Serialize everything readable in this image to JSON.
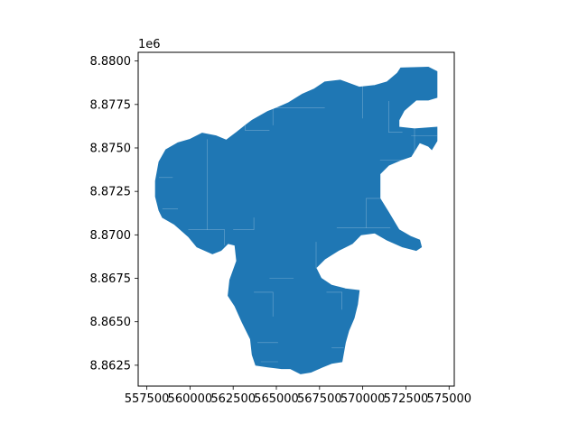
{
  "chart_data": {
    "type": "map",
    "title": "",
    "xlabel": "",
    "ylabel": "",
    "y_offset_label": "1e6",
    "xlim": [
      557000,
      575300
    ],
    "ylim": [
      8861300,
      8880500
    ],
    "x_ticks": [
      {
        "value": 557500,
        "label": "557500"
      },
      {
        "value": 560000,
        "label": "560000"
      },
      {
        "value": 562500,
        "label": "562500"
      },
      {
        "value": 565000,
        "label": "565000"
      },
      {
        "value": 567500,
        "label": "567500"
      },
      {
        "value": 570000,
        "label": "570000"
      },
      {
        "value": 572500,
        "label": "572500"
      },
      {
        "value": 575000,
        "label": "575000"
      }
    ],
    "y_ticks": [
      {
        "value": 8862500,
        "label": "8.8625"
      },
      {
        "value": 8865000,
        "label": "8.8650"
      },
      {
        "value": 8867500,
        "label": "8.8675"
      },
      {
        "value": 8870000,
        "label": "8.8700"
      },
      {
        "value": 8872500,
        "label": "8.8725"
      },
      {
        "value": 8875000,
        "label": "8.8750"
      },
      {
        "value": 8877500,
        "label": "8.8775"
      },
      {
        "value": 8880000,
        "label": "8.8800"
      }
    ],
    "fill_color": "#1f77b4",
    "edge_color": "#ffffff",
    "outline": [
      [
        558000,
        8873100
      ],
      [
        558200,
        8874200
      ],
      [
        558600,
        8874900
      ],
      [
        559300,
        8875300
      ],
      [
        560000,
        8875500
      ],
      [
        560700,
        8875850
      ],
      [
        561500,
        8875700
      ],
      [
        562100,
        8875450
      ],
      [
        562700,
        8875900
      ],
      [
        563200,
        8876300
      ],
      [
        563600,
        8876600
      ],
      [
        564500,
        8877100
      ],
      [
        565000,
        8877300
      ],
      [
        565700,
        8877600
      ],
      [
        566500,
        8878100
      ],
      [
        567200,
        8878400
      ],
      [
        567800,
        8878800
      ],
      [
        568700,
        8878900
      ],
      [
        569800,
        8878500
      ],
      [
        570700,
        8878600
      ],
      [
        571400,
        8878800
      ],
      [
        572000,
        8879300
      ],
      [
        572200,
        8879600
      ],
      [
        573800,
        8879650
      ],
      [
        574300,
        8879400
      ],
      [
        574300,
        8877900
      ],
      [
        573800,
        8877750
      ],
      [
        573100,
        8877750
      ],
      [
        572400,
        8877150
      ],
      [
        572100,
        8876600
      ],
      [
        572100,
        8876200
      ],
      [
        573000,
        8876100
      ],
      [
        574300,
        8876200
      ],
      [
        574300,
        8875400
      ],
      [
        574000,
        8874900
      ],
      [
        573800,
        8875100
      ],
      [
        573300,
        8875300
      ],
      [
        572800,
        8874500
      ],
      [
        572200,
        8874300
      ],
      [
        571500,
        8874000
      ],
      [
        571000,
        8873500
      ],
      [
        571000,
        8872100
      ],
      [
        571500,
        8871300
      ],
      [
        572100,
        8870300
      ],
      [
        572800,
        8869900
      ],
      [
        573300,
        8869700
      ],
      [
        573400,
        8869300
      ],
      [
        573100,
        8869100
      ],
      [
        572300,
        8869300
      ],
      [
        571400,
        8869700
      ],
      [
        570700,
        8870100
      ],
      [
        569900,
        8870000
      ],
      [
        569400,
        8869500
      ],
      [
        568600,
        8869100
      ],
      [
        567800,
        8868600
      ],
      [
        567300,
        8868100
      ],
      [
        567600,
        8867500
      ],
      [
        568200,
        8867100
      ],
      [
        569000,
        8866900
      ],
      [
        569800,
        8866800
      ],
      [
        569700,
        8866000
      ],
      [
        569500,
        8865200
      ],
      [
        569200,
        8864500
      ],
      [
        569000,
        8863800
      ],
      [
        568800,
        8862700
      ],
      [
        568200,
        8862600
      ],
      [
        567700,
        8862400
      ],
      [
        567000,
        8862100
      ],
      [
        566400,
        8862000
      ],
      [
        565800,
        8862300
      ],
      [
        565300,
        8862300
      ],
      [
        564500,
        8862400
      ],
      [
        563800,
        8862500
      ],
      [
        563600,
        8863100
      ],
      [
        563500,
        8864000
      ],
      [
        563000,
        8865000
      ],
      [
        562600,
        8865900
      ],
      [
        562200,
        8866500
      ],
      [
        562300,
        8867400
      ],
      [
        562700,
        8868500
      ],
      [
        562600,
        8869400
      ],
      [
        562200,
        8869500
      ],
      [
        561800,
        8869100
      ],
      [
        561300,
        8868900
      ],
      [
        560400,
        8869300
      ],
      [
        559900,
        8869900
      ],
      [
        559100,
        8870600
      ],
      [
        558400,
        8871000
      ],
      [
        558200,
        8871400
      ],
      [
        558000,
        8872200
      ]
    ],
    "internal_boundaries": [
      [
        [
          565000,
          8877300
        ],
        [
          567800,
          8877300
        ]
      ],
      [
        [
          563200,
          8876300
        ],
        [
          563200,
          8876000
        ],
        [
          564600,
          8876000
        ]
      ],
      [
        [
          561000,
          8875500
        ],
        [
          561000,
          8870300
        ]
      ],
      [
        [
          558200,
          8873300
        ],
        [
          559000,
          8873300
        ]
      ],
      [
        [
          558400,
          8871500
        ],
        [
          559300,
          8871500
        ]
      ],
      [
        [
          559900,
          8870300
        ],
        [
          561000,
          8870300
        ],
        [
          562000,
          8870300
        ],
        [
          562000,
          8869400
        ]
      ],
      [
        [
          562500,
          8870300
        ],
        [
          563700,
          8870300
        ],
        [
          563700,
          8871000
        ]
      ],
      [
        [
          564800,
          8877300
        ],
        [
          564800,
          8876300
        ]
      ],
      [
        [
          570000,
          8878600
        ],
        [
          570000,
          8876700
        ]
      ],
      [
        [
          571500,
          8877700
        ],
        [
          571500,
          8875900
        ],
        [
          572300,
          8875900
        ]
      ],
      [
        [
          572800,
          8875700
        ],
        [
          574300,
          8875700
        ]
      ],
      [
        [
          573000,
          8876100
        ],
        [
          573000,
          8874700
        ]
      ],
      [
        [
          571000,
          8874300
        ],
        [
          572400,
          8874300
        ]
      ],
      [
        [
          571000,
          8872100
        ],
        [
          570200,
          8872100
        ],
        [
          570200,
          8870400
        ]
      ],
      [
        [
          568500,
          8870400
        ],
        [
          571600,
          8870400
        ]
      ],
      [
        [
          567300,
          8869600
        ],
        [
          567300,
          8868100
        ],
        [
          568500,
          8868100
        ]
      ],
      [
        [
          567900,
          8866700
        ],
        [
          568800,
          8866700
        ],
        [
          568800,
          8865700
        ]
      ],
      [
        [
          563700,
          8866700
        ],
        [
          564800,
          8866700
        ],
        [
          564800,
          8865300
        ]
      ],
      [
        [
          563900,
          8863800
        ],
        [
          565100,
          8863800
        ]
      ],
      [
        [
          564100,
          8862700
        ],
        [
          565100,
          8862700
        ]
      ],
      [
        [
          564600,
          8867500
        ],
        [
          566000,
          8867500
        ]
      ],
      [
        [
          568200,
          8863500
        ],
        [
          568900,
          8863500
        ]
      ]
    ]
  }
}
